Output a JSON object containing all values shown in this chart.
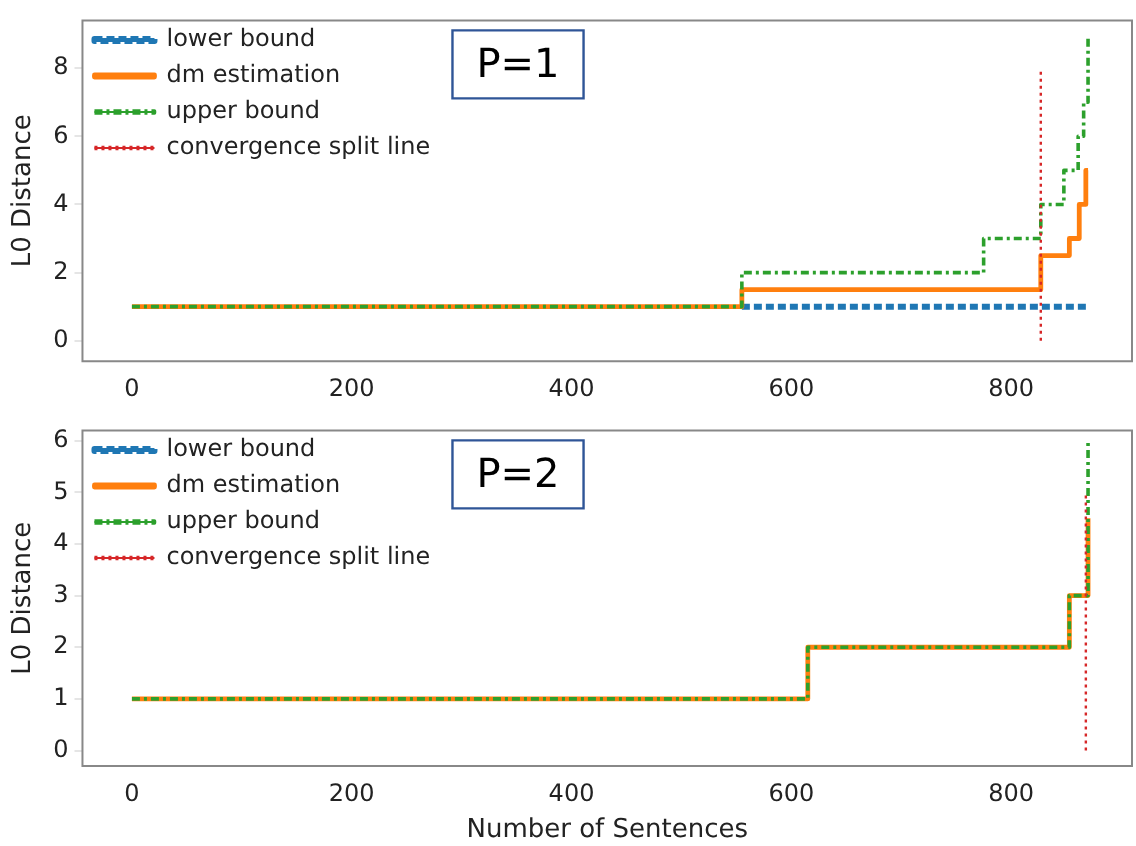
{
  "chart_data": [
    {
      "type": "step",
      "annotations": [
        "P=1"
      ],
      "ylabel": "L0 Distance",
      "xlim": [
        -45,
        910
      ],
      "xticks": [
        0,
        200,
        400,
        600,
        800
      ],
      "ylim": [
        -0.6,
        9.4
      ],
      "yticks": [
        0,
        2,
        4,
        6,
        8
      ],
      "legend": "top left",
      "grid": false,
      "series": [
        {
          "name": "lower bound",
          "color": "#1f77b4",
          "line_style": "dashed",
          "x": [
            555,
            870
          ],
          "values": [
            1,
            1
          ]
        },
        {
          "name": "dm estimation",
          "color": "#ff7f0e",
          "line_style": "solid",
          "x": [
            0,
            555,
            827,
            853,
            862,
            868,
            870
          ],
          "values": [
            1,
            1.5,
            2.5,
            3,
            4,
            5,
            5
          ]
        },
        {
          "name": "upper bound",
          "color": "#2ca02c",
          "line_style": "dashdot",
          "x": [
            0,
            555,
            775,
            827,
            848,
            861,
            866,
            870
          ],
          "values": [
            1,
            2,
            3,
            4,
            5,
            6,
            7,
            8.9
          ]
        },
        {
          "name": "convergence split line",
          "type": "line",
          "color": "#d62728",
          "line_style": "dotted",
          "x": [
            827,
            827
          ],
          "values": [
            0,
            8
          ]
        }
      ]
    },
    {
      "type": "step",
      "annotations": [
        "P=2"
      ],
      "xlabel": "Number of Sentences",
      "ylabel": "L0 Distance",
      "xlim": [
        -45,
        910
      ],
      "xticks": [
        0,
        200,
        400,
        600,
        800
      ],
      "ylim": [
        -0.3,
        6.2
      ],
      "yticks": [
        0,
        1,
        2,
        3,
        4,
        5,
        6
      ],
      "legend": "top left",
      "grid": false,
      "series": [
        {
          "name": "lower bound",
          "color": "#1f77b4",
          "line_style": "dashed"
        },
        {
          "name": "dm estimation",
          "color": "#ff7f0e",
          "line_style": "solid",
          "x": [
            0,
            615,
            853,
            870
          ],
          "values": [
            1,
            2,
            3,
            4.5
          ]
        },
        {
          "name": "upper bound",
          "color": "#2ca02c",
          "line_style": "dashdot",
          "x": [
            0,
            615,
            853,
            870
          ],
          "values": [
            1,
            2,
            3,
            6
          ]
        },
        {
          "name": "convergence split line",
          "type": "line",
          "color": "#d62728",
          "line_style": "dotted",
          "x": [
            868,
            868
          ],
          "values": [
            0,
            5
          ]
        }
      ]
    }
  ]
}
